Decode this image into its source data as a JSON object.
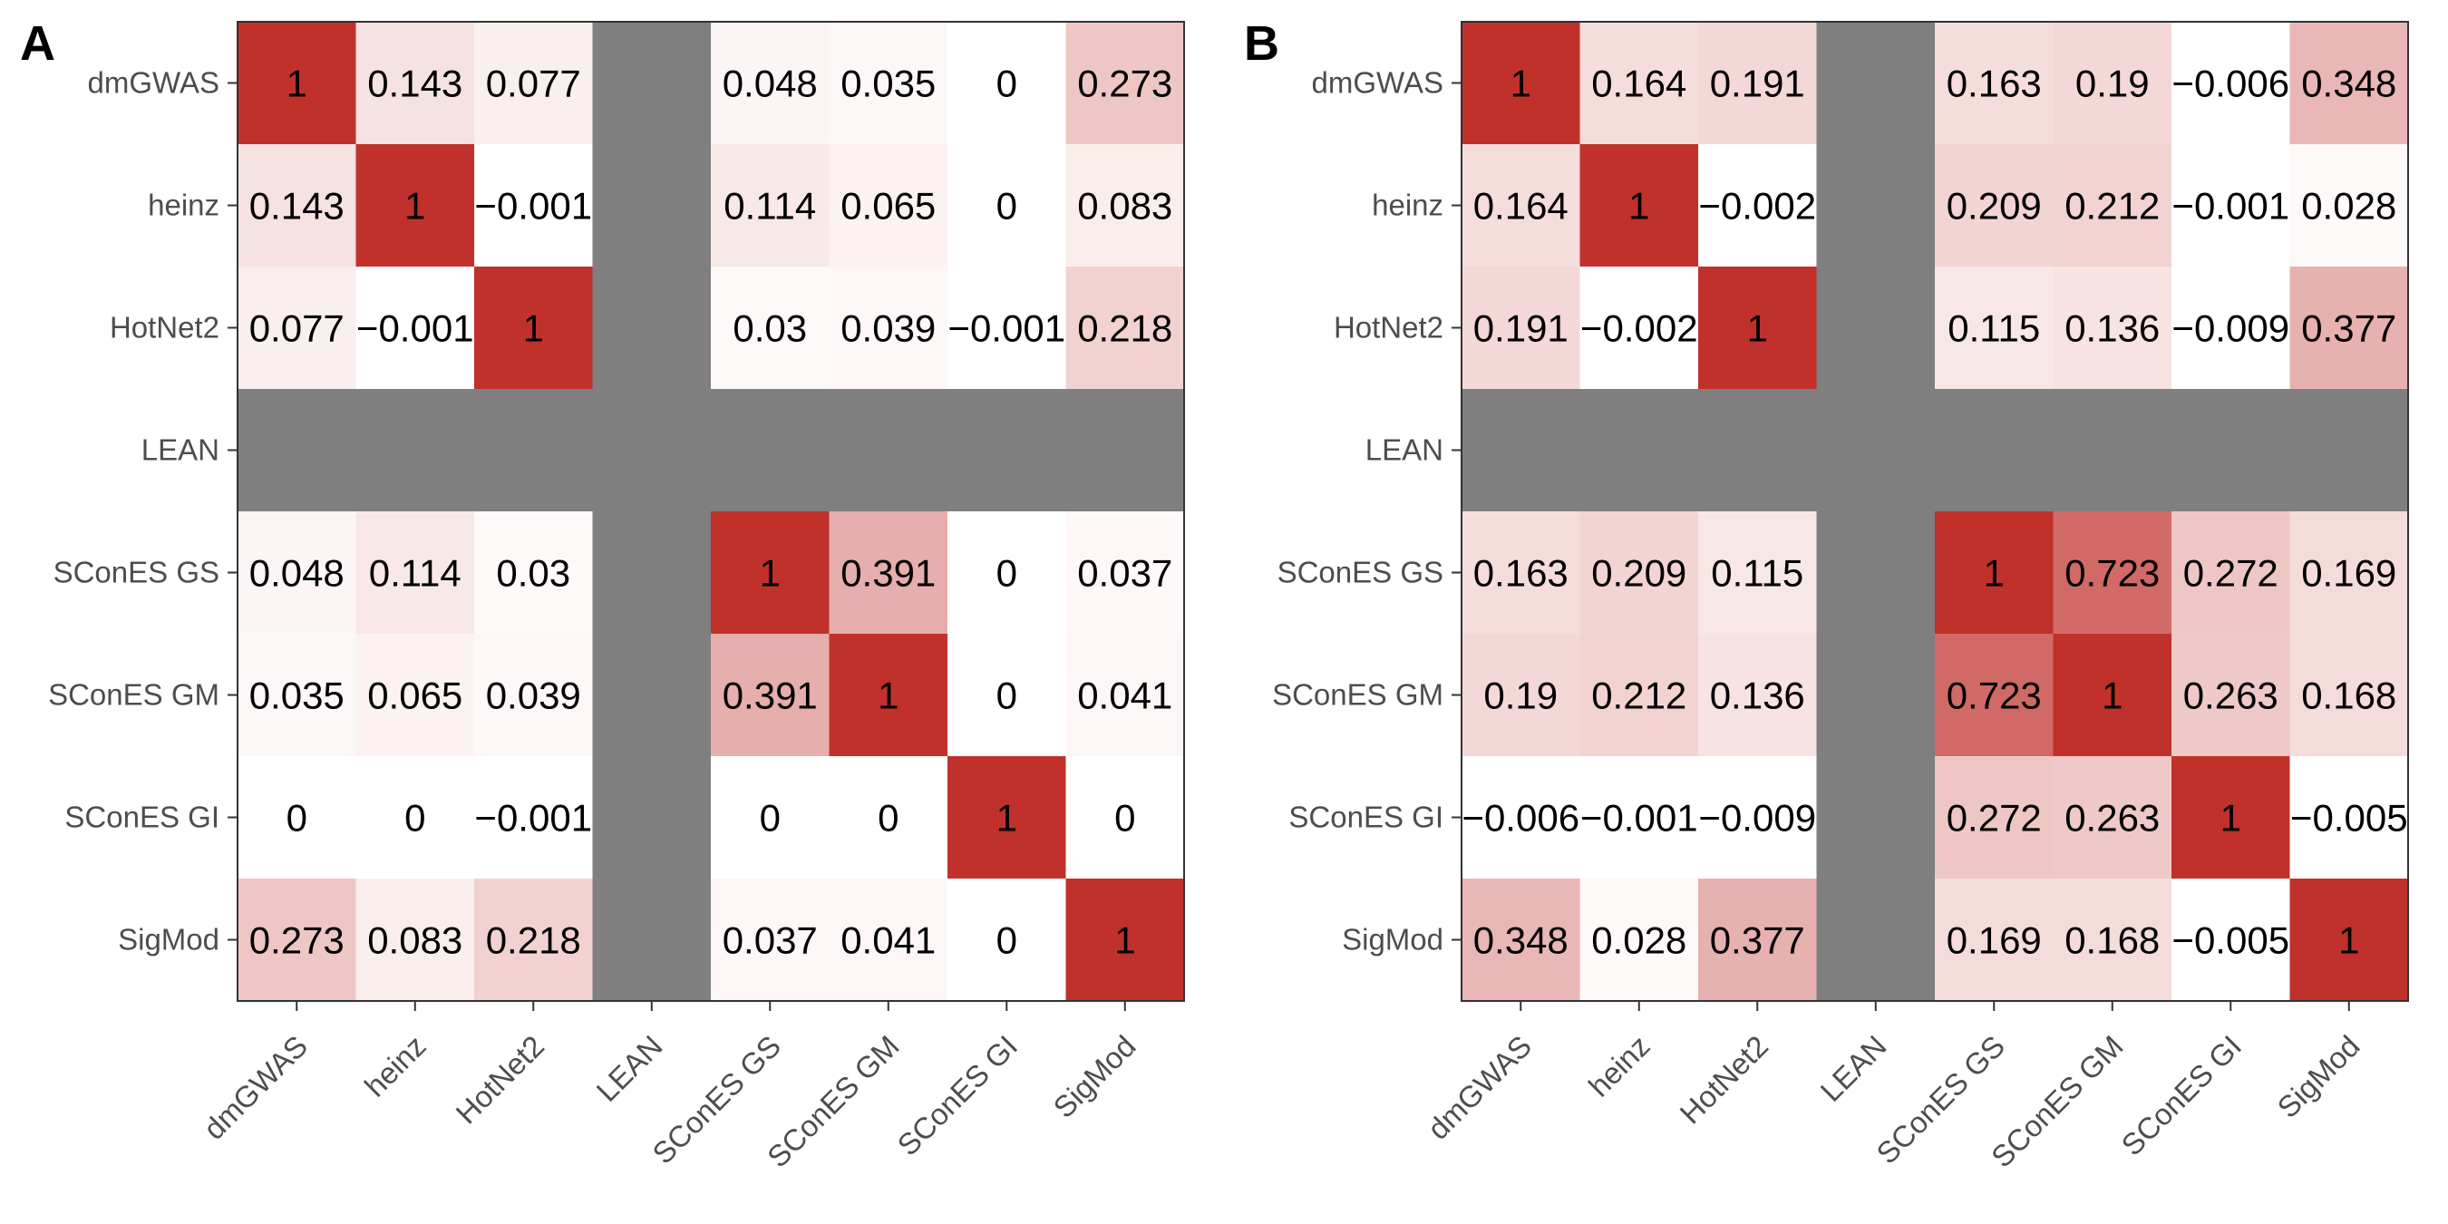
{
  "chart_data": [
    {
      "type": "heatmap",
      "panel_label": "A",
      "rows": [
        "dmGWAS",
        "heinz",
        "HotNet2",
        "LEAN",
        "SConES GS",
        "SConES GM",
        "SConES GI",
        "SigMod"
      ],
      "cols": [
        "dmGWAS",
        "heinz",
        "HotNet2",
        "LEAN",
        "SConES GS",
        "SConES GM",
        "SConES GI",
        "SigMod"
      ],
      "values": [
        [
          1,
          0.143,
          0.077,
          null,
          0.048,
          0.035,
          0,
          0.273
        ],
        [
          0.143,
          1,
          -0.001,
          null,
          0.114,
          0.065,
          0,
          0.083
        ],
        [
          0.077,
          -0.001,
          1,
          null,
          0.03,
          0.039,
          -0.001,
          0.218
        ],
        [
          null,
          null,
          null,
          null,
          null,
          null,
          null,
          null
        ],
        [
          0.048,
          0.114,
          0.03,
          null,
          1,
          0.391,
          0,
          0.037
        ],
        [
          0.035,
          0.065,
          0.039,
          null,
          0.391,
          1,
          0,
          0.041
        ],
        [
          0,
          0,
          -0.001,
          null,
          0,
          0,
          1,
          0
        ],
        [
          0.273,
          0.083,
          0.218,
          null,
          0.037,
          0.041,
          0,
          1
        ]
      ],
      "labels": [
        [
          "1",
          "0.143",
          "0.077",
          "",
          "0.048",
          "0.035",
          "0",
          "0.273"
        ],
        [
          "0.143",
          "1",
          "−0.001",
          "",
          "0.114",
          "0.065",
          "0",
          "0.083"
        ],
        [
          "0.077",
          "−0.001",
          "1",
          "",
          "0.03",
          "0.039",
          "−0.001",
          "0.218"
        ],
        [
          "",
          "",
          "",
          "",
          "",
          "",
          "",
          ""
        ],
        [
          "0.048",
          "0.114",
          "0.03",
          "",
          "1",
          "0.391",
          "0",
          "0.037"
        ],
        [
          "0.035",
          "0.065",
          "0.039",
          "",
          "0.391",
          "1",
          "0",
          "0.041"
        ],
        [
          "0",
          "0",
          "−0.001",
          "",
          "0",
          "0",
          "1",
          "0"
        ],
        [
          "0.273",
          "0.083",
          "0.218",
          "",
          "0.037",
          "0.041",
          "0",
          "1"
        ]
      ],
      "na_color": "#7f7f7f",
      "low_color": "#ffffff",
      "high_color": "#c0312b",
      "legend": "none",
      "grid": false
    },
    {
      "type": "heatmap",
      "panel_label": "B",
      "rows": [
        "dmGWAS",
        "heinz",
        "HotNet2",
        "LEAN",
        "SConES GS",
        "SConES GM",
        "SConES GI",
        "SigMod"
      ],
      "cols": [
        "dmGWAS",
        "heinz",
        "HotNet2",
        "LEAN",
        "SConES GS",
        "SConES GM",
        "SConES GI",
        "SigMod"
      ],
      "values": [
        [
          1,
          0.164,
          0.191,
          null,
          0.163,
          0.19,
          -0.006,
          0.348
        ],
        [
          0.164,
          1,
          -0.002,
          null,
          0.209,
          0.212,
          -0.001,
          0.028
        ],
        [
          0.191,
          -0.002,
          1,
          null,
          0.115,
          0.136,
          -0.009,
          0.377
        ],
        [
          null,
          null,
          null,
          null,
          null,
          null,
          null,
          null
        ],
        [
          0.163,
          0.209,
          0.115,
          null,
          1,
          0.723,
          0.272,
          0.169
        ],
        [
          0.19,
          0.212,
          0.136,
          null,
          0.723,
          1,
          0.263,
          0.168
        ],
        [
          -0.006,
          -0.001,
          -0.009,
          null,
          0.272,
          0.263,
          1,
          -0.005
        ],
        [
          0.348,
          0.028,
          0.377,
          null,
          0.169,
          0.168,
          -0.005,
          1
        ]
      ],
      "labels": [
        [
          "1",
          "0.164",
          "0.191",
          "",
          "0.163",
          "0.19",
          "−0.006",
          "0.348"
        ],
        [
          "0.164",
          "1",
          "−0.002",
          "",
          "0.209",
          "0.212",
          "−0.001",
          "0.028"
        ],
        [
          "0.191",
          "−0.002",
          "1",
          "",
          "0.115",
          "0.136",
          "−0.009",
          "0.377"
        ],
        [
          "",
          "",
          "",
          "",
          "",
          "",
          "",
          ""
        ],
        [
          "0.163",
          "0.209",
          "0.115",
          "",
          "1",
          "0.723",
          "0.272",
          "0.169"
        ],
        [
          "0.19",
          "0.212",
          "0.136",
          "",
          "0.723",
          "1",
          "0.263",
          "0.168"
        ],
        [
          "−0.006",
          "−0.001",
          "−0.009",
          "",
          "0.272",
          "0.263",
          "1",
          "−0.005"
        ],
        [
          "0.348",
          "0.028",
          "0.377",
          "",
          "0.169",
          "0.168",
          "−0.005",
          "1"
        ]
      ],
      "na_color": "#7f7f7f",
      "low_color": "#ffffff",
      "high_color": "#c0312b",
      "legend": "none",
      "grid": false
    }
  ]
}
